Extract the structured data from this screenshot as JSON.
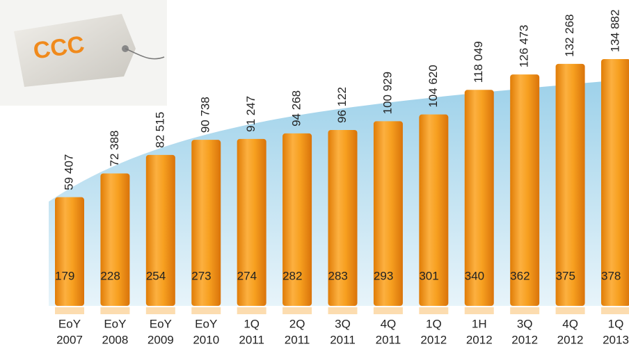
{
  "logo_text": "CCC",
  "chart_data": {
    "type": "bar",
    "categories": [
      [
        "EoY",
        "2007"
      ],
      [
        "EoY",
        "2008"
      ],
      [
        "EoY",
        "2009"
      ],
      [
        "EoY",
        "2010"
      ],
      [
        "1Q",
        "2011"
      ],
      [
        "2Q",
        "2011"
      ],
      [
        "3Q",
        "2011"
      ],
      [
        "4Q",
        "2011"
      ],
      [
        "1Q",
        "2012"
      ],
      [
        "1H",
        "2012"
      ],
      [
        "3Q",
        "2012"
      ],
      [
        "4Q",
        "2012"
      ],
      [
        "1Q",
        "2013"
      ]
    ],
    "values": [
      59407,
      72388,
      82515,
      90738,
      91247,
      94268,
      96122,
      100929,
      104620,
      118049,
      126473,
      132268,
      134882
    ],
    "value_labels": [
      "59 407",
      "72 388",
      "82 515",
      "90 738",
      "91 247",
      "94 268",
      "96 122",
      "100 929",
      "104 620",
      "118 049",
      "126 473",
      "132 268",
      "134 882"
    ],
    "store_counts": [
      179,
      228,
      254,
      273,
      274,
      282,
      283,
      293,
      301,
      340,
      362,
      375,
      378
    ],
    "color": "#f59a1b"
  }
}
